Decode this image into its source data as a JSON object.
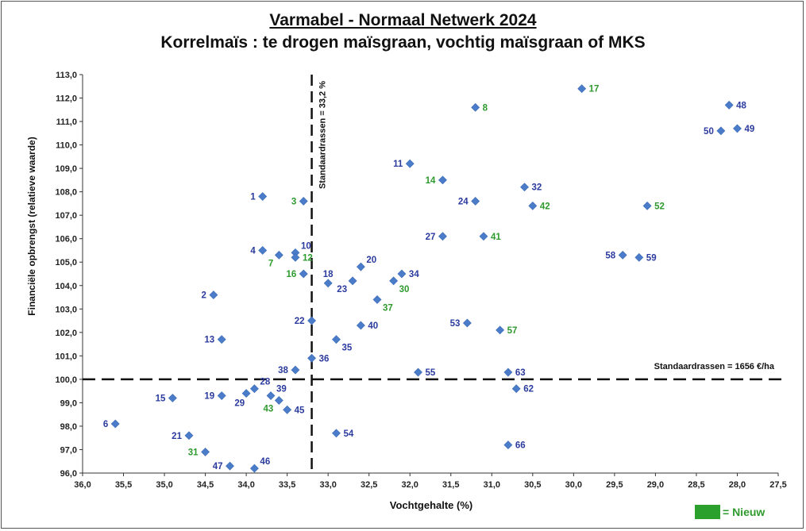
{
  "chart_data": {
    "type": "scatter",
    "title": "Varmabel - Normaal Netwerk 2024",
    "subtitle": "Korrelmaïs : te drogen maïsgraan, vochtig maïsgraan of MKS",
    "xlabel": "Vochtgehalte (%)",
    "ylabel": "Financiële opbrengst  (relatieve waarde)",
    "xlim": [
      36.0,
      27.5
    ],
    "ylim": [
      96.0,
      113.0
    ],
    "x_reversed": true,
    "xticks": [
      "36,0",
      "35,5",
      "35,0",
      "34,5",
      "34,0",
      "33,5",
      "33,0",
      "32,5",
      "32,0",
      "31,5",
      "31,0",
      "30,5",
      "30,0",
      "29,5",
      "29,0",
      "28,5",
      "28,0",
      "27,5"
    ],
    "yticks": [
      "96,0",
      "97,0",
      "98,0",
      "99,0",
      "100,0",
      "101,0",
      "102,0",
      "103,0",
      "104,0",
      "105,0",
      "106,0",
      "107,0",
      "108,0",
      "109,0",
      "110,0",
      "111,0",
      "112,0",
      "113,0"
    ],
    "reference_lines": {
      "vertical": {
        "x": 33.2,
        "label": "Standaardrassen = 33,2 %"
      },
      "horizontal": {
        "y": 100.0,
        "label": "Standaardrassen = 1656 €/ha"
      }
    },
    "colors": {
      "marker": "#4a7cc9",
      "label_existing": "#2b3b9e",
      "label_new": "#2e9a2e",
      "legend": "#2ca02c",
      "ref_line": "#111111"
    },
    "legend": {
      "label": "= Nieuw"
    },
    "points": [
      {
        "id": "1",
        "x": 33.8,
        "y": 107.8,
        "new": false,
        "side": "left"
      },
      {
        "id": "2",
        "x": 34.4,
        "y": 103.6,
        "new": false,
        "side": "left"
      },
      {
        "id": "3",
        "x": 33.3,
        "y": 107.6,
        "new": true,
        "side": "left"
      },
      {
        "id": "4",
        "x": 33.8,
        "y": 105.5,
        "new": false,
        "side": "left"
      },
      {
        "id": "6",
        "x": 35.6,
        "y": 98.1,
        "new": false,
        "side": "left"
      },
      {
        "id": "7",
        "x": 33.6,
        "y": 105.3,
        "new": true,
        "side": "below-left"
      },
      {
        "id": "8",
        "x": 31.2,
        "y": 111.6,
        "new": true,
        "side": "right"
      },
      {
        "id": "10",
        "x": 33.4,
        "y": 105.4,
        "new": false,
        "side": "upper-right"
      },
      {
        "id": "11",
        "x": 32.0,
        "y": 109.2,
        "new": false,
        "side": "left"
      },
      {
        "id": "12",
        "x": 33.4,
        "y": 105.2,
        "new": true,
        "side": "right"
      },
      {
        "id": "13",
        "x": 34.3,
        "y": 101.7,
        "new": false,
        "side": "left"
      },
      {
        "id": "14",
        "x": 31.6,
        "y": 108.5,
        "new": true,
        "side": "left"
      },
      {
        "id": "15",
        "x": 34.9,
        "y": 99.2,
        "new": false,
        "side": "left"
      },
      {
        "id": "16",
        "x": 33.3,
        "y": 104.5,
        "new": true,
        "side": "left"
      },
      {
        "id": "17",
        "x": 29.9,
        "y": 112.4,
        "new": true,
        "side": "right"
      },
      {
        "id": "18",
        "x": 33.0,
        "y": 104.1,
        "new": false,
        "side": "above"
      },
      {
        "id": "19",
        "x": 34.3,
        "y": 99.3,
        "new": false,
        "side": "left"
      },
      {
        "id": "20",
        "x": 32.6,
        "y": 104.8,
        "new": false,
        "side": "upper-right"
      },
      {
        "id": "21",
        "x": 34.7,
        "y": 97.6,
        "new": false,
        "side": "left"
      },
      {
        "id": "22",
        "x": 33.2,
        "y": 102.5,
        "new": false,
        "side": "left"
      },
      {
        "id": "23",
        "x": 32.7,
        "y": 104.2,
        "new": false,
        "side": "below-left"
      },
      {
        "id": "24",
        "x": 31.2,
        "y": 107.6,
        "new": false,
        "side": "left"
      },
      {
        "id": "27",
        "x": 31.6,
        "y": 106.1,
        "new": false,
        "side": "left"
      },
      {
        "id": "28",
        "x": 33.9,
        "y": 99.6,
        "new": false,
        "side": "upper-right"
      },
      {
        "id": "29",
        "x": 34.0,
        "y": 99.4,
        "new": false,
        "side": "below"
      },
      {
        "id": "30",
        "x": 32.2,
        "y": 104.2,
        "new": true,
        "side": "below-right"
      },
      {
        "id": "31",
        "x": 34.5,
        "y": 96.9,
        "new": true,
        "side": "left"
      },
      {
        "id": "32",
        "x": 30.6,
        "y": 108.2,
        "new": false,
        "side": "right"
      },
      {
        "id": "34",
        "x": 32.1,
        "y": 104.5,
        "new": false,
        "side": "right"
      },
      {
        "id": "35",
        "x": 32.9,
        "y": 101.7,
        "new": false,
        "side": "below-right"
      },
      {
        "id": "36",
        "x": 33.2,
        "y": 100.9,
        "new": false,
        "side": "right"
      },
      {
        "id": "37",
        "x": 32.4,
        "y": 103.4,
        "new": true,
        "side": "below-right"
      },
      {
        "id": "38",
        "x": 33.4,
        "y": 100.4,
        "new": false,
        "side": "left"
      },
      {
        "id": "39",
        "x": 33.7,
        "y": 99.3,
        "new": false,
        "side": "upper-right"
      },
      {
        "id": "40",
        "x": 32.6,
        "y": 102.3,
        "new": false,
        "side": "right"
      },
      {
        "id": "41",
        "x": 31.1,
        "y": 106.1,
        "new": true,
        "side": "right"
      },
      {
        "id": "42",
        "x": 30.5,
        "y": 107.4,
        "new": true,
        "side": "right"
      },
      {
        "id": "43",
        "x": 33.6,
        "y": 99.1,
        "new": true,
        "side": "below-left"
      },
      {
        "id": "45",
        "x": 33.5,
        "y": 98.7,
        "new": false,
        "side": "right"
      },
      {
        "id": "46",
        "x": 33.9,
        "y": 96.2,
        "new": false,
        "side": "upper-right"
      },
      {
        "id": "47",
        "x": 34.2,
        "y": 96.3,
        "new": false,
        "side": "left"
      },
      {
        "id": "48",
        "x": 28.1,
        "y": 111.7,
        "new": false,
        "side": "right"
      },
      {
        "id": "49",
        "x": 28.0,
        "y": 110.7,
        "new": false,
        "side": "right"
      },
      {
        "id": "50",
        "x": 28.2,
        "y": 110.6,
        "new": false,
        "side": "left"
      },
      {
        "id": "52",
        "x": 29.1,
        "y": 107.4,
        "new": true,
        "side": "right"
      },
      {
        "id": "53",
        "x": 31.3,
        "y": 102.4,
        "new": false,
        "side": "left"
      },
      {
        "id": "54",
        "x": 32.9,
        "y": 97.7,
        "new": false,
        "side": "right"
      },
      {
        "id": "55",
        "x": 31.9,
        "y": 100.3,
        "new": false,
        "side": "right"
      },
      {
        "id": "57",
        "x": 30.9,
        "y": 102.1,
        "new": true,
        "side": "right"
      },
      {
        "id": "58",
        "x": 29.4,
        "y": 105.3,
        "new": false,
        "side": "left"
      },
      {
        "id": "59",
        "x": 29.2,
        "y": 105.2,
        "new": false,
        "side": "right"
      },
      {
        "id": "62",
        "x": 30.7,
        "y": 99.6,
        "new": false,
        "side": "right"
      },
      {
        "id": "63",
        "x": 30.8,
        "y": 100.3,
        "new": false,
        "side": "right"
      },
      {
        "id": "66",
        "x": 30.8,
        "y": 97.2,
        "new": false,
        "side": "right"
      }
    ]
  }
}
